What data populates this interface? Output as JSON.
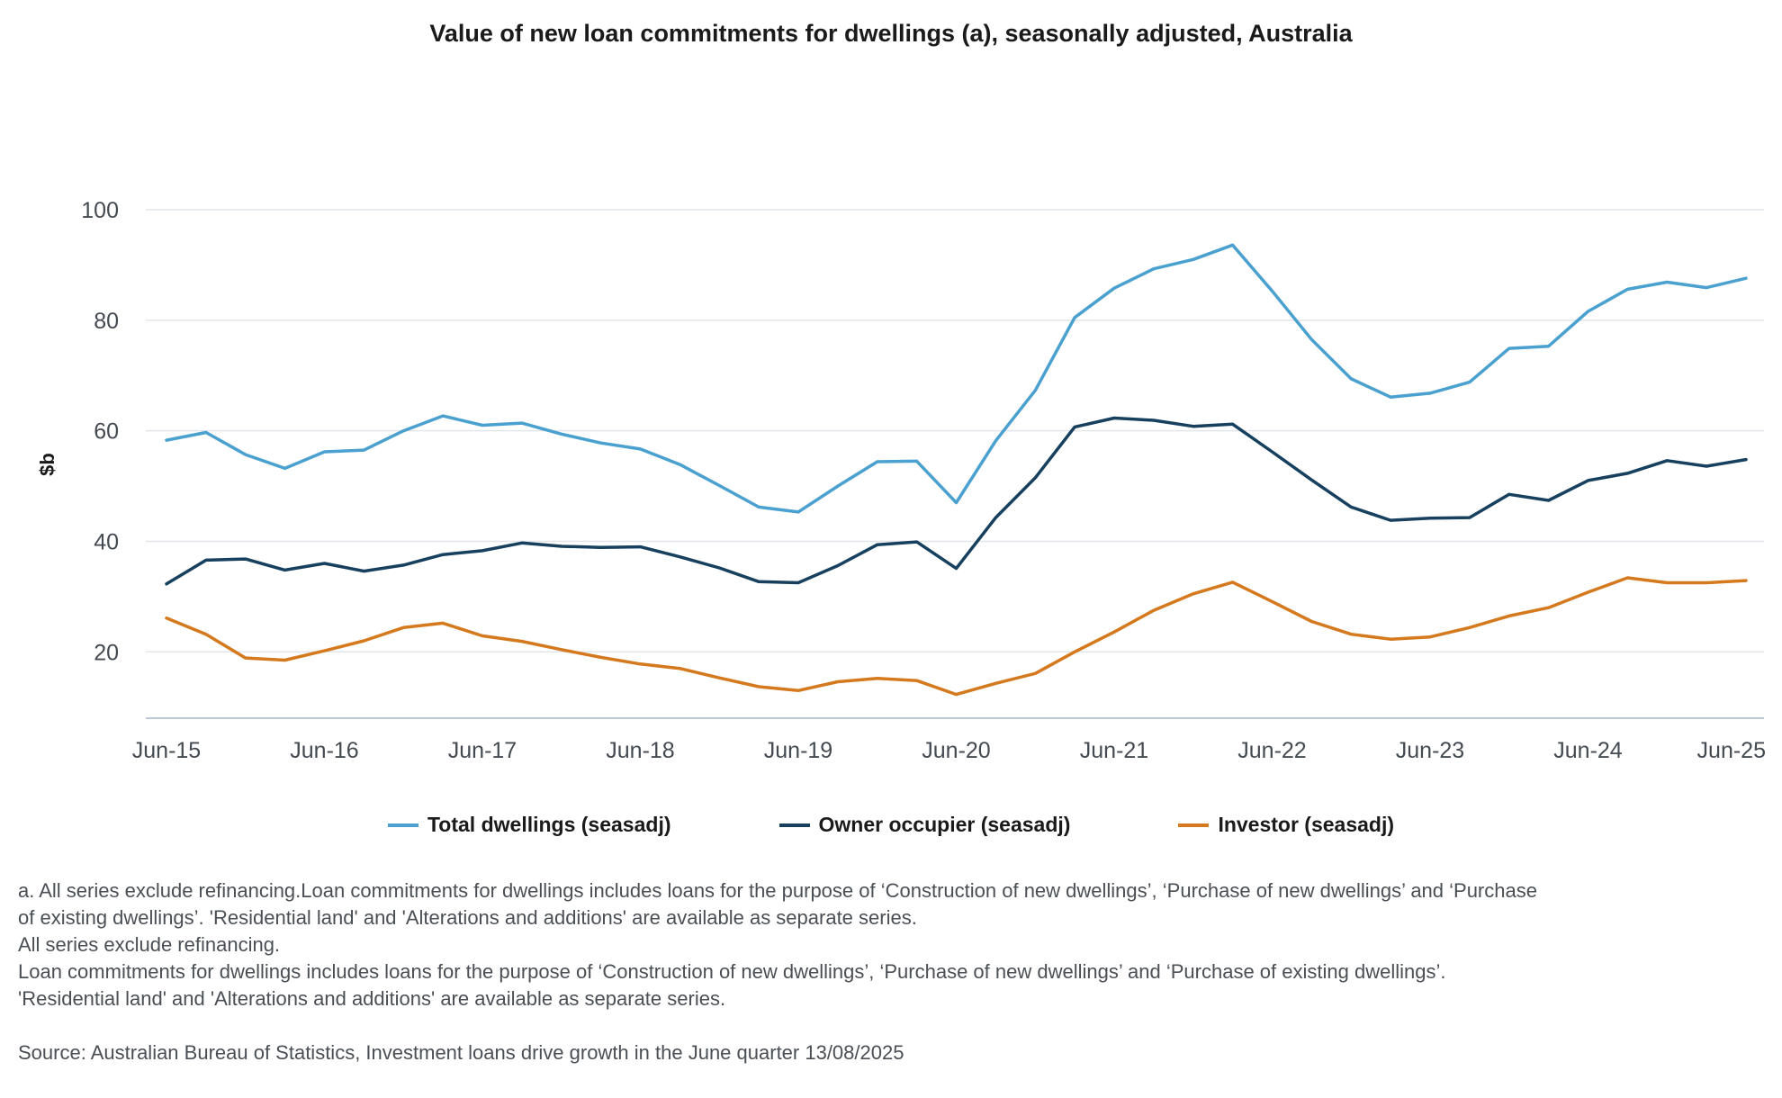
{
  "chart_data": {
    "type": "line",
    "title": "Value of new loan commitments for dwellings (a), seasonally adjusted, Australia",
    "xlabel": "",
    "ylabel": "$b",
    "ylim": [
      8,
      100
    ],
    "yticks": [
      20,
      40,
      60,
      80,
      100
    ],
    "xtick_labels": [
      "Jun-15",
      "Jun-16",
      "Jun-17",
      "Jun-18",
      "Jun-19",
      "Jun-20",
      "Jun-21",
      "Jun-22",
      "Jun-23",
      "Jun-24",
      "Jun-25"
    ],
    "xtick_indices": [
      0,
      4,
      8,
      12,
      16,
      20,
      24,
      28,
      32,
      36,
      40
    ],
    "x_points": 41,
    "grid": true,
    "legend_position": "bottom",
    "series": [
      {
        "name": "Total dwellings (seasadj)",
        "color": "#4aa0cf",
        "values": [
          58.3,
          59.7,
          55.7,
          53.2,
          56.2,
          56.5,
          60.0,
          62.7,
          61.0,
          61.4,
          59.4,
          57.8,
          56.7,
          53.9,
          50.1,
          46.2,
          45.3,
          50.0,
          54.4,
          54.5,
          47.0,
          58.2,
          67.3,
          80.5,
          85.8,
          89.3,
          91.0,
          93.6,
          85.3,
          76.5,
          69.4,
          66.1,
          66.8,
          68.8,
          74.9,
          75.3,
          81.6,
          85.6,
          86.9,
          85.9,
          87.6
        ]
      },
      {
        "name": "Owner occupier (seasadj)",
        "color": "#17405f",
        "values": [
          32.3,
          36.6,
          36.8,
          34.8,
          36.0,
          34.6,
          35.7,
          37.6,
          38.3,
          39.7,
          39.1,
          38.9,
          39.0,
          37.2,
          35.2,
          32.7,
          32.5,
          35.6,
          39.4,
          39.9,
          35.1,
          44.3,
          51.5,
          60.7,
          62.3,
          61.9,
          60.8,
          61.2,
          56.2,
          51.1,
          46.2,
          43.8,
          44.2,
          44.3,
          48.5,
          47.4,
          51.0,
          52.3,
          54.6,
          53.6,
          54.8
        ]
      },
      {
        "name": "Investor (seasadj)",
        "color": "#d4791d",
        "values": [
          26.1,
          23.2,
          18.9,
          18.5,
          20.2,
          22.0,
          24.4,
          25.2,
          22.9,
          21.9,
          20.4,
          19.0,
          17.8,
          17.0,
          15.3,
          13.7,
          13.0,
          14.6,
          15.2,
          14.8,
          12.3,
          14.3,
          16.1,
          20.0,
          23.6,
          27.5,
          30.5,
          32.6,
          29.1,
          25.5,
          23.2,
          22.3,
          22.7,
          24.4,
          26.5,
          28.0,
          30.8,
          33.4,
          32.5,
          32.5,
          32.9
        ]
      }
    ]
  },
  "notes": [
    "a. All series exclude refinancing.Loan commitments for dwellings includes loans for the purpose of ‘Construction of new dwellings’, ‘Purchase of new dwellings’ and ‘Purchase",
    "of existing dwellings’. 'Residential land' and 'Alterations and additions' are available as separate series.",
    "All series exclude refinancing.",
    "Loan commitments for dwellings includes loans for the purpose of ‘Construction of new dwellings’, ‘Purchase of new dwellings’ and ‘Purchase of existing dwellings’.",
    "'Residential land' and 'Alterations and additions' are available as separate series."
  ],
  "source": "Source: Australian Bureau of Statistics, Investment loans drive growth in the June quarter 13/08/2025"
}
